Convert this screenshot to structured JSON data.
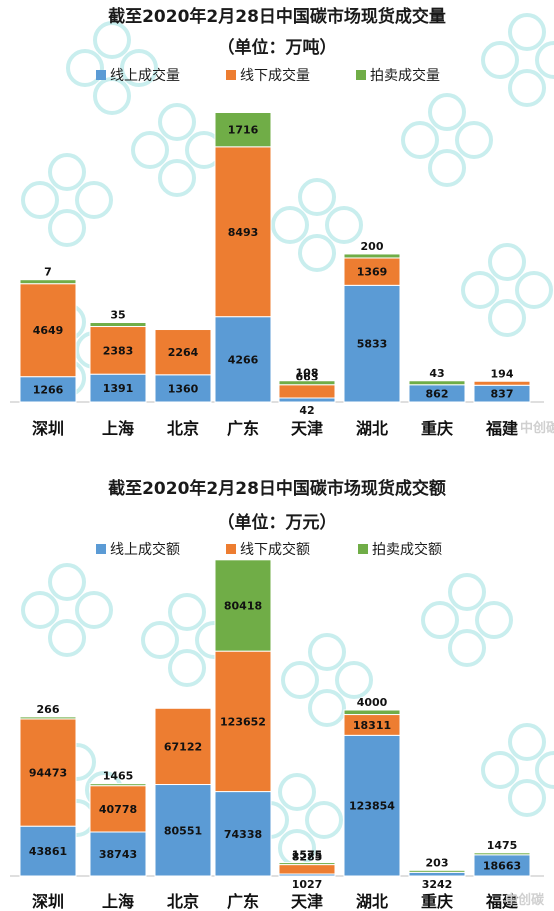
{
  "colors": {
    "online": "#5b9bd5",
    "offline": "#ed7d31",
    "auction": "#70ad47"
  },
  "chart_data": [
    {
      "type": "bar",
      "stacked": true,
      "title": "截至2020年2月28日中国碳市场现货成交量",
      "subtitle": "（单位：万吨）",
      "categories": [
        "深圳",
        "上海",
        "北京",
        "广东",
        "天津",
        "湖北",
        "重庆",
        "福建"
      ],
      "series": [
        {
          "name": "线上成交量",
          "values": [
            1266,
            1391,
            1360,
            4266,
            42,
            5833,
            862,
            837
          ]
        },
        {
          "name": "线下成交量",
          "values": [
            4649,
            2383,
            2264,
            8493,
            663,
            1369,
            0,
            194
          ]
        },
        {
          "name": "拍卖成交量",
          "values": [
            7,
            35,
            0,
            1716,
            108,
            200,
            43,
            0
          ]
        }
      ],
      "data_labels": [
        [
          "1266",
          "1391",
          "1360",
          "4266",
          "42",
          "5833",
          "862",
          "837"
        ],
        [
          "4649",
          "2383",
          "2264",
          "8493",
          "663",
          "1369",
          "",
          "194"
        ],
        [
          "7",
          "35",
          "",
          "1716",
          "108",
          "200",
          "43",
          ""
        ]
      ],
      "ylim": [
        0,
        15000
      ],
      "legend": "top",
      "grid": false
    },
    {
      "type": "bar",
      "stacked": true,
      "title": "截至2020年2月28日中国碳市场现货成交额",
      "subtitle": "（单位：万元）",
      "categories": [
        "深圳",
        "上海",
        "北京",
        "广东",
        "天津",
        "湖北",
        "重庆",
        "福建"
      ],
      "series": [
        {
          "name": "线上成交额",
          "values": [
            43861,
            38743,
            80551,
            74338,
            1027,
            123854,
            3242,
            18663
          ]
        },
        {
          "name": "线下成交额",
          "values": [
            94473,
            40778,
            67122,
            123652,
            8285,
            18311,
            0,
            0
          ]
        },
        {
          "name": "拍卖成交额",
          "values": [
            266,
            1465,
            0,
            80418,
            1575,
            4000,
            203,
            1475
          ]
        }
      ],
      "data_labels": [
        [
          "43861",
          "38743",
          "80551",
          "74338",
          "1027",
          "123854",
          "3242",
          "18663"
        ],
        [
          "94473",
          "40778",
          "67122",
          "123652",
          "8285",
          "18311",
          "",
          ""
        ],
        [
          "266",
          "1465",
          "",
          "80418",
          "1575",
          "4000",
          "203",
          "1475"
        ]
      ],
      "ylim": [
        0,
        280000
      ],
      "legend": "top",
      "grid": false
    }
  ],
  "watermarks": {
    "logo_text": "中创碳投",
    "brand_top": "中创碳",
    "brand_bottom": "中创碳"
  }
}
